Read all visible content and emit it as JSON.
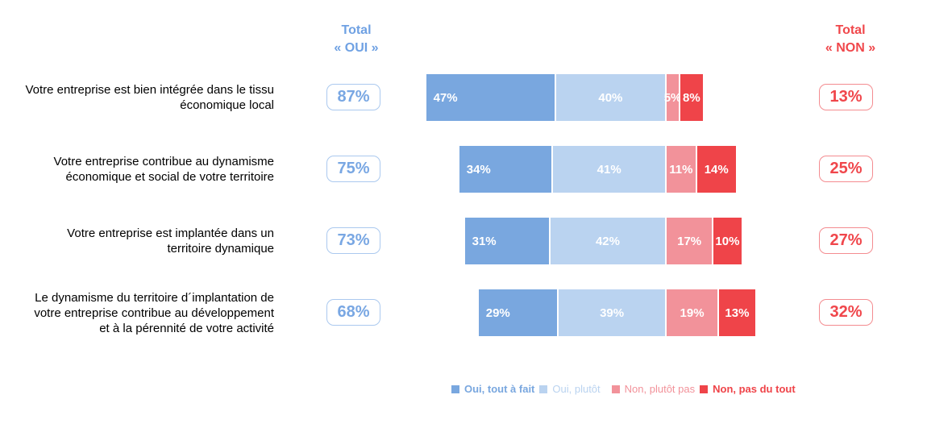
{
  "chart_data": {
    "type": "bar",
    "variant": "horizontal-diverging-stacked",
    "unit": "%",
    "title": "",
    "categories": [
      "Votre entreprise est bien intégrée dans le tissu\néconomique local",
      "Votre entreprise contribue au dynamisme\néconomique et social de votre territoire",
      "Votre entreprise est implantée dans un\nterritoire dynamique",
      "Le dynamisme du territoire d´implantation de\nvotre entreprise contribue au développement\net à la pérennité de votre activité"
    ],
    "series": [
      {
        "name": "Oui, tout à fait",
        "color": "#79A7DF",
        "legend_bold": true,
        "values": [
          47,
          34,
          31,
          29
        ]
      },
      {
        "name": "Oui, plutôt",
        "color": "#BAD3F0",
        "legend_bold": false,
        "values": [
          40,
          41,
          42,
          39
        ]
      },
      {
        "name": "Non, plutôt pas",
        "color": "#F2929A",
        "legend_bold": false,
        "values": [
          5,
          11,
          17,
          19
        ]
      },
      {
        "name": "Non, pas du tout",
        "color": "#EF4449",
        "legend_bold": true,
        "values": [
          8,
          14,
          10,
          13
        ]
      }
    ],
    "totals_oui": {
      "label": "Total\n« OUI »",
      "values": [
        87,
        75,
        73,
        68
      ]
    },
    "totals_non": {
      "label": "Total\n« NON »",
      "values": [
        13,
        25,
        27,
        32
      ]
    },
    "alignment": "bars aligned on the boundary between OUI and NON segments",
    "legend_position": "bottom",
    "grid": false
  },
  "colors": {
    "oui_header_text": "#6FA1E3",
    "non_header_text": "#F0474B",
    "oui_box_text": "#79A7E3",
    "oui_box_border": "#ABC9EF",
    "non_box_text": "#F0464B",
    "non_box_border": "#F48C90",
    "bar_value_text": "#FFFFFF",
    "question_text": "#000000",
    "background": "#FFFFFF"
  }
}
